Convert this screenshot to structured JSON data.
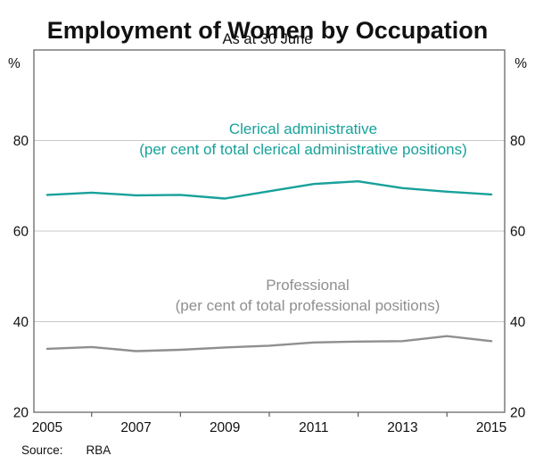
{
  "title": "Employment of Women by Occupation",
  "subtitle": "As at 30 June",
  "source_label": "Source:",
  "source_value": "RBA",
  "chart_data": {
    "type": "line",
    "title": "Employment of Women by Occupation",
    "subtitle": "As at 30 June",
    "x": [
      2005,
      2006,
      2007,
      2008,
      2009,
      2010,
      2011,
      2012,
      2013,
      2014,
      2015
    ],
    "series": [
      {
        "name": "Clerical administrative",
        "label_line1": "Clerical administrative",
        "label_line2": "(per cent of total clerical administrative positions)",
        "color": "#18a19a",
        "values": [
          68.0,
          68.5,
          67.9,
          68.0,
          67.2,
          68.8,
          70.4,
          71.0,
          69.5,
          68.7,
          68.1
        ]
      },
      {
        "name": "Professional",
        "label_line1": "Professional",
        "label_line2": "(per cent of total professional positions)",
        "color": "#8f8f8f",
        "values": [
          34.0,
          34.4,
          33.5,
          33.8,
          34.3,
          34.7,
          35.4,
          35.6,
          35.7,
          36.8,
          35.7
        ]
      }
    ],
    "xlim": [
      2004.7,
      2015.3
    ],
    "ylim": [
      20,
      100
    ],
    "yticks": [
      20,
      40,
      60,
      80
    ],
    "xticklabels": [
      2005,
      2007,
      2009,
      2011,
      2013,
      2015
    ],
    "xticks_minor": [
      2006,
      2008,
      2010,
      2012,
      2014
    ],
    "unit_left": "%",
    "unit_right": "%",
    "grid": true,
    "grid_color": "#c9c9c9",
    "frame_color": "#666666",
    "label_color": "#111111",
    "legend_position": "inline-annotations",
    "source": "RBA"
  }
}
